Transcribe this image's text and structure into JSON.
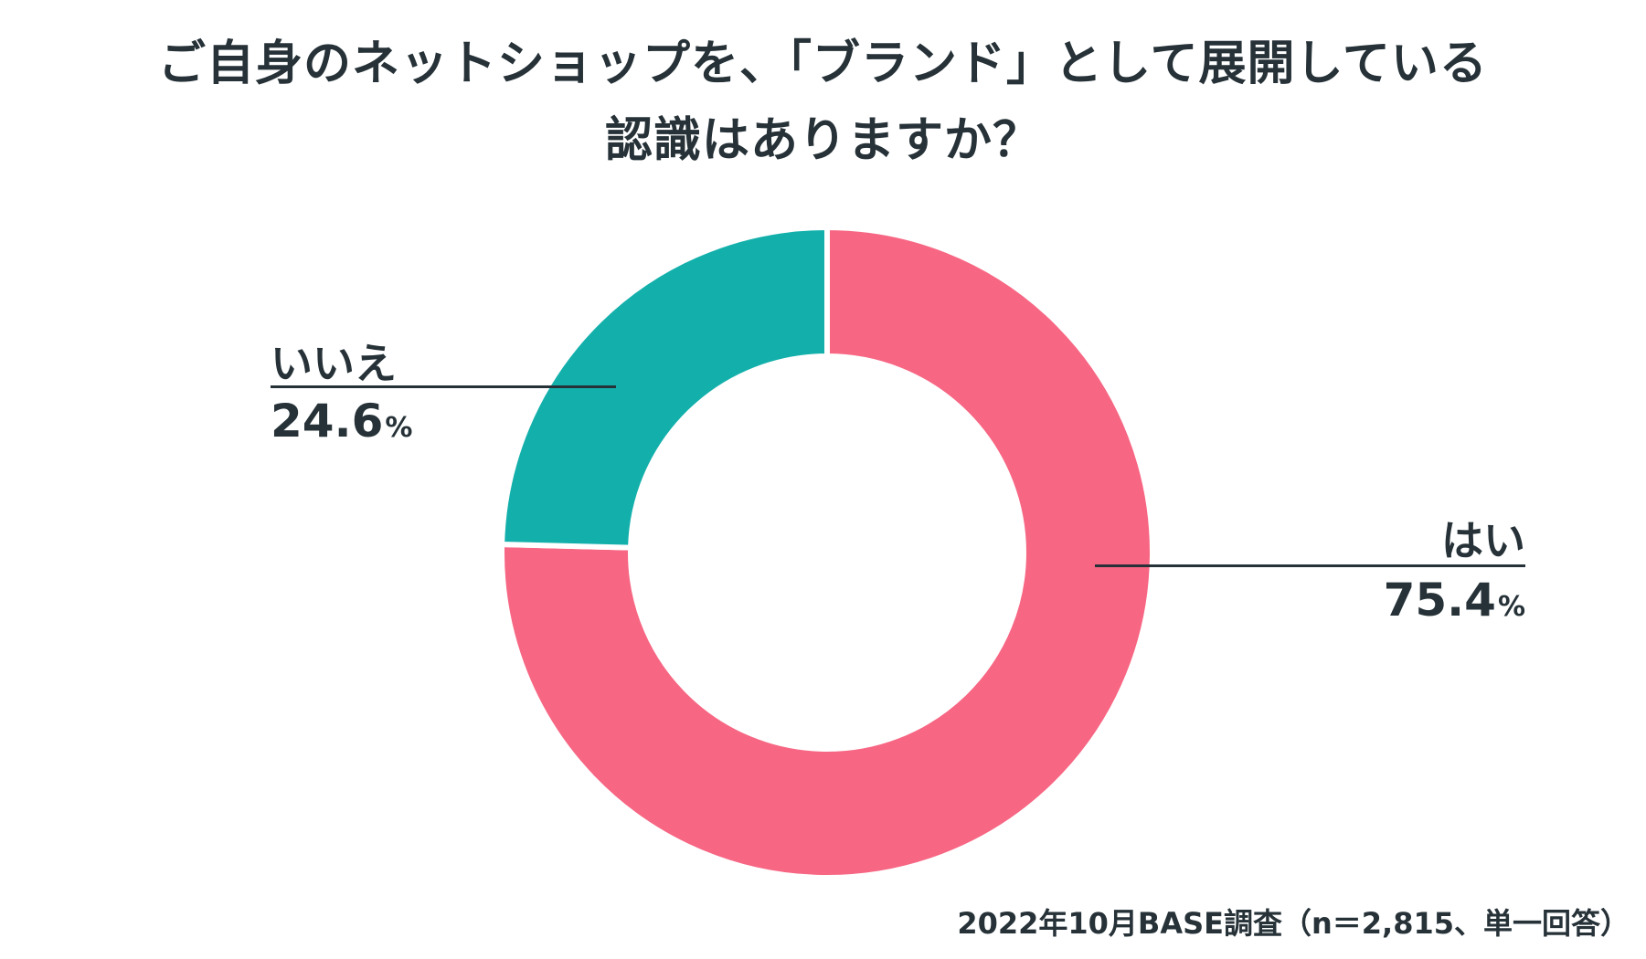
{
  "chart_data": {
    "type": "pie",
    "variant": "donut",
    "title_lines": [
      "ご自身のネットショップを、「ブランド」として展開している",
      "認識はありますか？"
    ],
    "start_angle": "top (12 o'clock), clockwise",
    "slices": [
      {
        "label": "はい",
        "value": 75.4,
        "display_value": "75.4",
        "unit": "%",
        "color": "#f76683"
      },
      {
        "label": "いいえ",
        "value": 24.6,
        "display_value": "24.6",
        "unit": "%",
        "color": "#13b0ab"
      }
    ],
    "source_note": "2022年10月BASE調査（n＝2,815、単一回答）"
  }
}
